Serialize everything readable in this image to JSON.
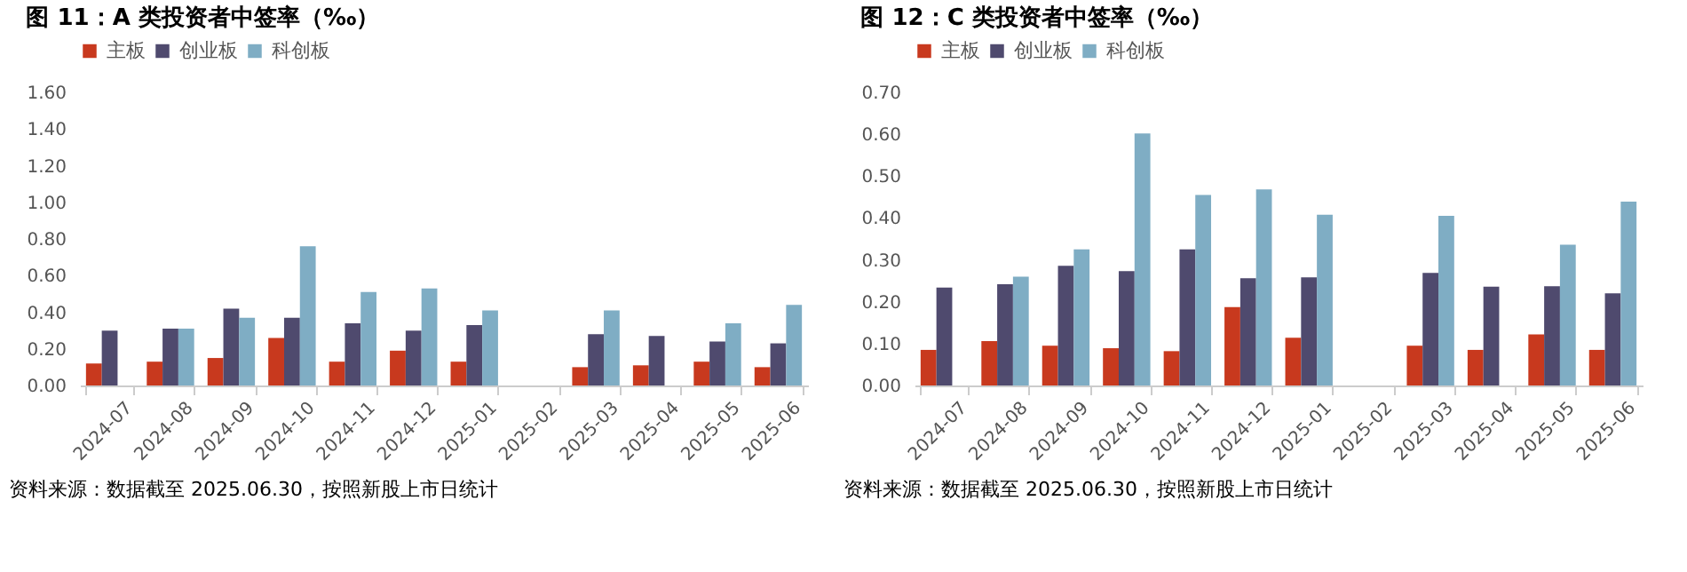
{
  "chart_data": [
    {
      "type": "bar",
      "title": "图 11：A 类投资者中签率（‰）",
      "categories": [
        "2024-07",
        "2024-08",
        "2024-09",
        "2024-10",
        "2024-11",
        "2024-12",
        "2025-01",
        "2025-02",
        "2025-03",
        "2025-04",
        "2025-05",
        "2025-06"
      ],
      "series": [
        {
          "name": "主板",
          "color": "#c8391e",
          "values": [
            0.12,
            0.13,
            0.15,
            0.26,
            0.13,
            0.19,
            0.13,
            null,
            0.1,
            0.11,
            0.13,
            0.1
          ]
        },
        {
          "name": "创业板",
          "color": "#4f4a6e",
          "values": [
            0.3,
            0.31,
            0.42,
            0.37,
            0.34,
            0.3,
            0.33,
            null,
            0.28,
            0.27,
            0.24,
            0.23
          ]
        },
        {
          "name": "科创板",
          "color": "#7fadc4",
          "values": [
            null,
            0.31,
            0.37,
            0.76,
            0.51,
            0.53,
            0.41,
            null,
            0.41,
            null,
            0.34,
            0.44
          ]
        }
      ],
      "ylim": [
        0,
        1.6
      ],
      "yticks": [
        {
          "value": 0,
          "label": "0.00"
        },
        {
          "value": 0.2,
          "label": "0.20"
        },
        {
          "value": 0.4,
          "label": "0.40"
        },
        {
          "value": 0.6,
          "label": "0.60"
        },
        {
          "value": 0.8,
          "label": "0.80"
        },
        {
          "value": 1.0,
          "label": "1.00"
        },
        {
          "value": 1.2,
          "label": "1.20"
        },
        {
          "value": 1.4,
          "label": "1.40"
        },
        {
          "value": 1.6,
          "label": "1.60"
        }
      ],
      "grid": false,
      "legend": "top",
      "annotations": [
        "资料来源：数据截至 2025.06.30，按照新股上市日统计"
      ]
    },
    {
      "type": "bar",
      "title": "图 12：C 类投资者中签率（‰）",
      "categories": [
        "2024-07",
        "2024-08",
        "2024-09",
        "2024-10",
        "2024-11",
        "2024-12",
        "2025-01",
        "2025-02",
        "2025-03",
        "2025-04",
        "2025-05",
        "2025-06"
      ],
      "series": [
        {
          "name": "主板",
          "color": "#c8391e",
          "values": [
            0.085,
            0.106,
            0.095,
            0.089,
            0.082,
            0.187,
            0.114,
            null,
            0.095,
            0.085,
            0.122,
            0.085
          ]
        },
        {
          "name": "创业板",
          "color": "#4f4a6e",
          "values": [
            0.234,
            0.242,
            0.286,
            0.273,
            0.325,
            0.256,
            0.258,
            null,
            0.269,
            0.236,
            0.237,
            0.22
          ]
        },
        {
          "name": "科创板",
          "color": "#7fadc4",
          "values": [
            null,
            0.26,
            0.325,
            0.602,
            0.455,
            0.468,
            0.408,
            null,
            0.405,
            null,
            0.336,
            0.439
          ]
        }
      ],
      "ylim": [
        0,
        0.7
      ],
      "yticks": [
        {
          "value": 0,
          "label": "0.00"
        },
        {
          "value": 0.1,
          "label": "0.10"
        },
        {
          "value": 0.2,
          "label": "0.20"
        },
        {
          "value": 0.3,
          "label": "0.30"
        },
        {
          "value": 0.4,
          "label": "0.40"
        },
        {
          "value": 0.5,
          "label": "0.50"
        },
        {
          "value": 0.6,
          "label": "0.60"
        },
        {
          "value": 0.7,
          "label": "0.70"
        }
      ],
      "grid": false,
      "legend": "top",
      "annotations": [
        "资料来源：数据截至 2025.06.30，按照新股上市日统计"
      ]
    }
  ]
}
